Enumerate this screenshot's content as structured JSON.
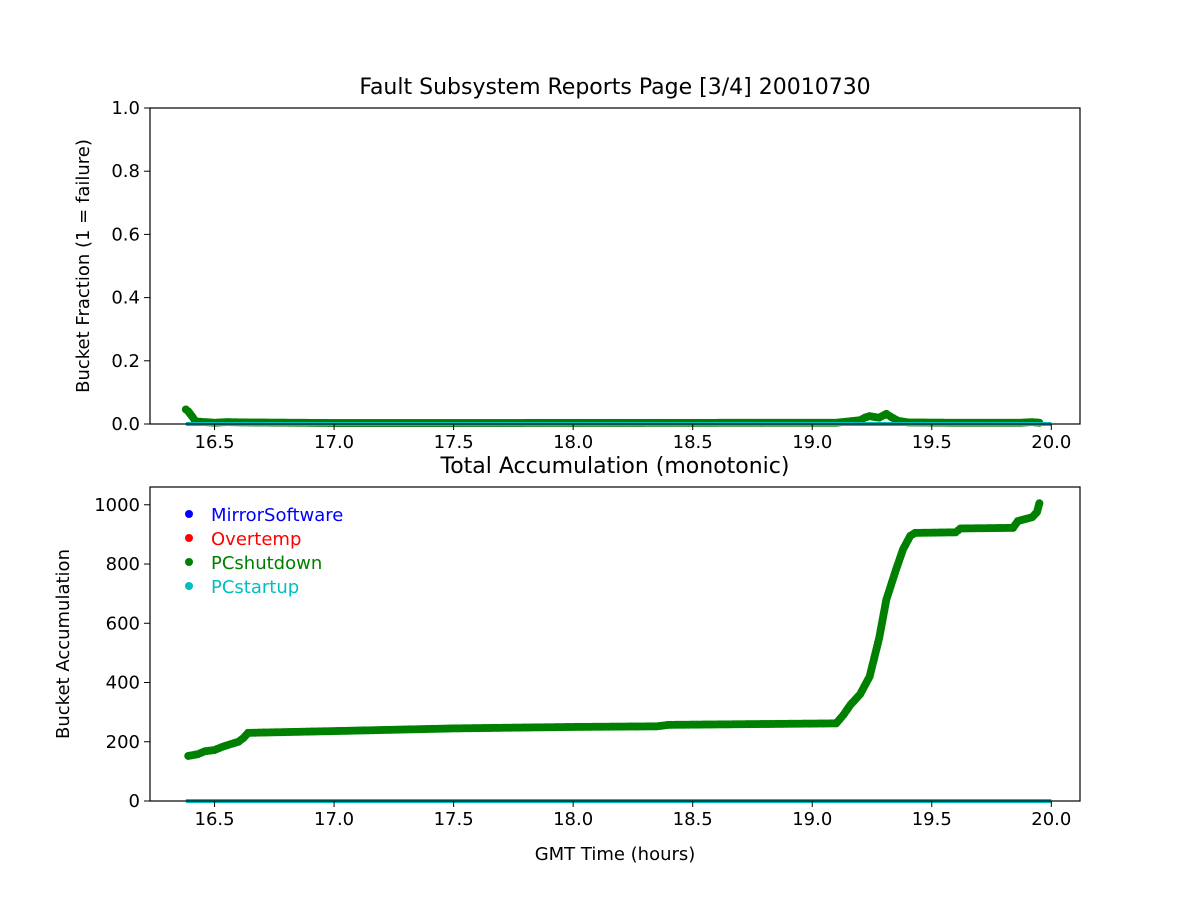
{
  "chart_data": [
    {
      "type": "scatter",
      "title": "Fault Subsystem Reports Page [3/4] 20010730",
      "xlabel": "",
      "ylabel": "Bucket Fraction (1 = failure)",
      "xlim": [
        16.23,
        20.12
      ],
      "ylim": [
        0,
        1
      ],
      "xticks": [
        "16.5",
        "17.0",
        "17.5",
        "18.0",
        "18.5",
        "19.0",
        "19.5",
        "20.0"
      ],
      "yticks": [
        "0.0",
        "0.2",
        "0.4",
        "0.6",
        "0.8",
        "1.0"
      ],
      "grid": false,
      "series": [
        {
          "name": "PCshutdown",
          "color": "#008000",
          "points": [
            [
              16.38,
              0.046
            ],
            [
              16.39,
              0.04
            ],
            [
              16.4,
              0.03
            ],
            [
              16.41,
              0.02
            ],
            [
              16.42,
              0.008
            ],
            [
              16.5,
              0.004
            ],
            [
              16.55,
              0.006
            ],
            [
              16.62,
              0.005
            ],
            [
              17.05,
              0.003
            ],
            [
              19.1,
              0.004
            ],
            [
              19.15,
              0.008
            ],
            [
              19.2,
              0.012
            ],
            [
              19.22,
              0.02
            ],
            [
              19.24,
              0.025
            ],
            [
              19.26,
              0.022
            ],
            [
              19.28,
              0.02
            ],
            [
              19.3,
              0.028
            ],
            [
              19.31,
              0.032
            ],
            [
              19.33,
              0.022
            ],
            [
              19.36,
              0.01
            ],
            [
              19.4,
              0.005
            ],
            [
              19.58,
              0.004
            ],
            [
              19.82,
              0.004
            ],
            [
              19.87,
              0.004
            ],
            [
              19.92,
              0.006
            ],
            [
              19.95,
              0.004
            ]
          ]
        },
        {
          "name": "PCstartup",
          "color": "#00bfbf",
          "points": [
            [
              16.38,
              0.0
            ],
            [
              20.0,
              0.0
            ]
          ]
        }
      ]
    },
    {
      "type": "scatter",
      "title": "Total Accumulation (monotonic)",
      "xlabel": "GMT Time (hours)",
      "ylabel": "Bucket Accumulation",
      "xlim": [
        16.23,
        20.12
      ],
      "ylim": [
        0,
        1060
      ],
      "xticks": [
        "16.5",
        "17.0",
        "17.5",
        "18.0",
        "18.5",
        "19.0",
        "19.5",
        "20.0"
      ],
      "yticks": [
        "0",
        "200",
        "400",
        "600",
        "800",
        "1000"
      ],
      "grid": false,
      "legend_position": "top-left",
      "legend": [
        {
          "name": "MirrorSoftware",
          "color": "#0000ff"
        },
        {
          "name": "Overtemp",
          "color": "#ff0000"
        },
        {
          "name": "PCshutdown",
          "color": "#008000"
        },
        {
          "name": "PCstartup",
          "color": "#00bfbf"
        }
      ],
      "series": [
        {
          "name": "PCshutdown",
          "color": "#008000",
          "points": [
            [
              16.39,
              152
            ],
            [
              16.43,
              158
            ],
            [
              16.46,
              168
            ],
            [
              16.5,
              172
            ],
            [
              16.53,
              182
            ],
            [
              16.56,
              190
            ],
            [
              16.6,
              200
            ],
            [
              16.62,
              212
            ],
            [
              16.64,
              230
            ],
            [
              17.0,
              236
            ],
            [
              17.5,
              245
            ],
            [
              18.0,
              250
            ],
            [
              18.35,
              252
            ],
            [
              18.4,
              257
            ],
            [
              19.1,
              262
            ],
            [
              19.13,
              290
            ],
            [
              19.16,
              325
            ],
            [
              19.2,
              360
            ],
            [
              19.24,
              420
            ],
            [
              19.28,
              550
            ],
            [
              19.31,
              680
            ],
            [
              19.35,
              780
            ],
            [
              19.38,
              850
            ],
            [
              19.41,
              895
            ],
            [
              19.43,
              905
            ],
            [
              19.6,
              907
            ],
            [
              19.62,
              920
            ],
            [
              19.84,
              922
            ],
            [
              19.86,
              945
            ],
            [
              19.92,
              958
            ],
            [
              19.94,
              975
            ],
            [
              19.95,
              1005
            ]
          ]
        },
        {
          "name": "PCstartup",
          "color": "#00bfbf",
          "points": [
            [
              16.38,
              0
            ],
            [
              20.0,
              0
            ]
          ]
        }
      ]
    }
  ]
}
